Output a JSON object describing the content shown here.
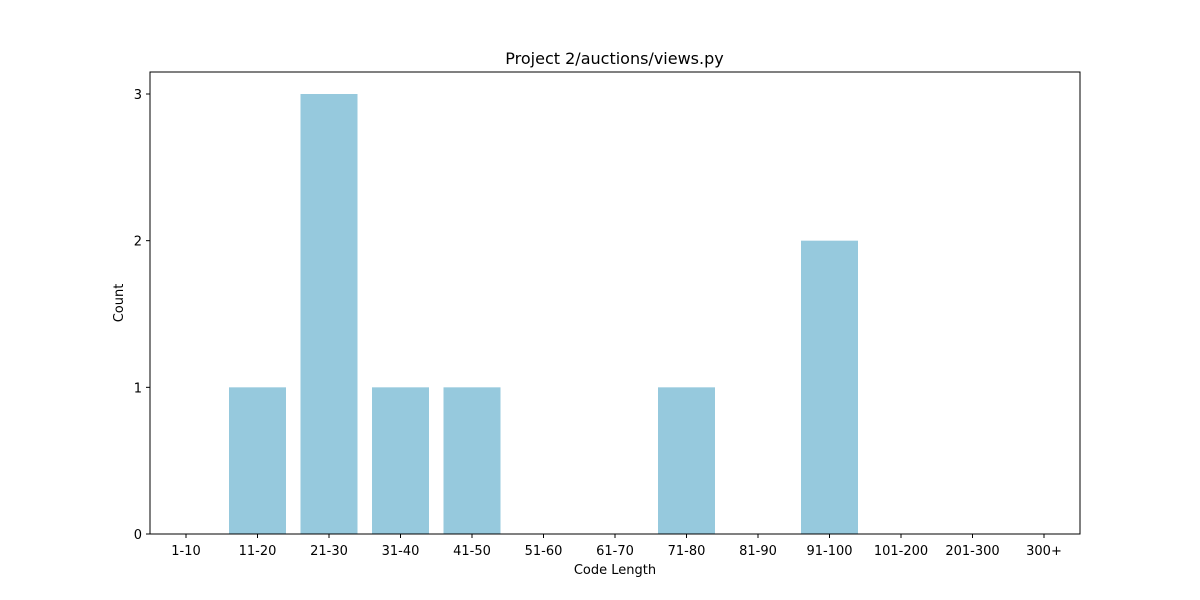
{
  "chart_data": {
    "type": "bar",
    "title": "Project 2/auctions/views.py",
    "xlabel": "Code Length",
    "ylabel": "Count",
    "categories": [
      "1-10",
      "11-20",
      "21-30",
      "31-40",
      "41-50",
      "51-60",
      "61-70",
      "71-80",
      "81-90",
      "91-100",
      "101-200",
      "201-300",
      "300+"
    ],
    "values": [
      0,
      1,
      3,
      1,
      1,
      0,
      0,
      1,
      0,
      2,
      0,
      0,
      0
    ],
    "yticks": [
      "0",
      "1",
      "2",
      "3"
    ],
    "ylim": [
      0,
      3.15
    ],
    "grid": false,
    "bar_color": "#96c9dd",
    "axis_color": "#000000"
  }
}
